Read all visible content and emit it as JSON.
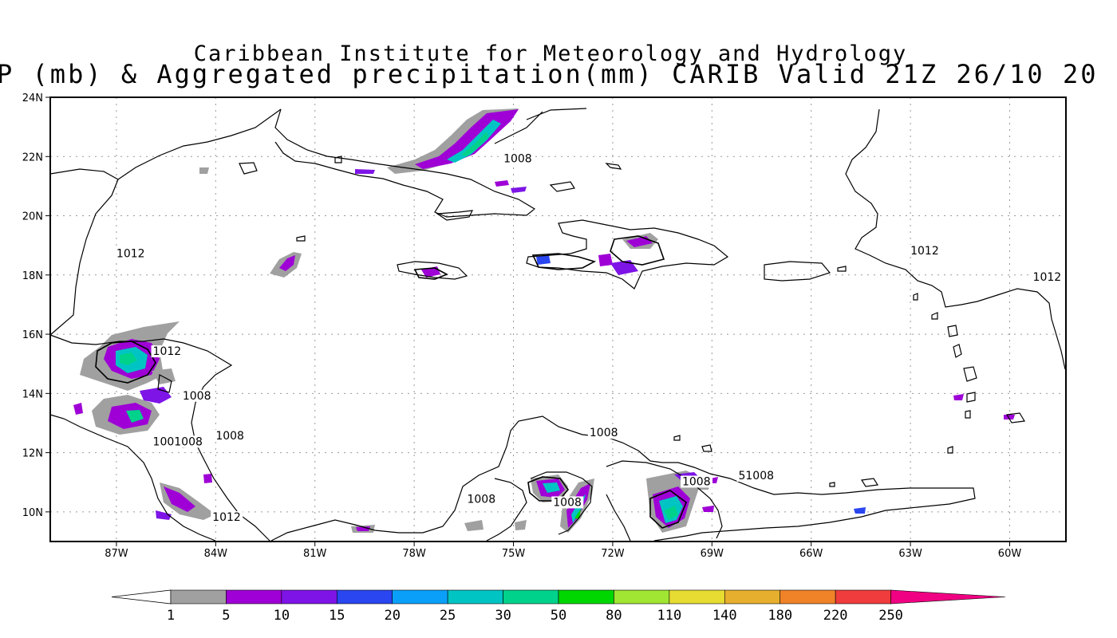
{
  "title": {
    "line1": "Caribbean Institute for Meteorology and Hydrology",
    "line2": "P (mb) & Aggregated precipitation(mm) CARIB Valid 21Z 26/10 20"
  },
  "map": {
    "lat_range": [
      9,
      24
    ],
    "lon_range": [
      -89,
      -58.3
    ],
    "lat_ticks": [
      {
        "label": "24N",
        "lat": 24
      },
      {
        "label": "22N",
        "lat": 22
      },
      {
        "label": "20N",
        "lat": 20
      },
      {
        "label": "18N",
        "lat": 18
      },
      {
        "label": "16N",
        "lat": 16
      },
      {
        "label": "14N",
        "lat": 14
      },
      {
        "label": "12N",
        "lat": 12
      },
      {
        "label": "10N",
        "lat": 10
      }
    ],
    "lon_ticks": [
      {
        "label": "87W",
        "lon": -87
      },
      {
        "label": "84W",
        "lon": -84
      },
      {
        "label": "81W",
        "lon": -81
      },
      {
        "label": "78W",
        "lon": -78
      },
      {
        "label": "75W",
        "lon": -75
      },
      {
        "label": "72W",
        "lon": -72
      },
      {
        "label": "69W",
        "lon": -69
      },
      {
        "label": "66W",
        "lon": -66
      },
      {
        "label": "63W",
        "lon": -63
      },
      {
        "label": "60W",
        "lon": -60
      }
    ],
    "pressure_labels": [
      {
        "text": "1012",
        "lon": -87.0,
        "lat": 18.6
      },
      {
        "text": "1012",
        "lon": -85.9,
        "lat": 15.3
      },
      {
        "text": "1008",
        "lon": -85.0,
        "lat": 13.8
      },
      {
        "text": "1001008",
        "lon": -85.9,
        "lat": 12.25
      },
      {
        "text": "1008",
        "lon": -84.0,
        "lat": 12.45
      },
      {
        "text": "1012",
        "lon": -84.1,
        "lat": 9.7
      },
      {
        "text": "1008",
        "lon": -75.3,
        "lat": 21.8
      },
      {
        "text": "1008",
        "lon": -72.7,
        "lat": 12.55
      },
      {
        "text": "1008",
        "lon": -76.4,
        "lat": 10.3
      },
      {
        "text": "1008",
        "lon": -73.8,
        "lat": 10.2
      },
      {
        "text": "1008",
        "lon": -69.9,
        "lat": 10.9
      },
      {
        "text": "51008",
        "lon": -68.2,
        "lat": 11.1
      },
      {
        "text": "1012",
        "lon": -63.0,
        "lat": 18.7
      },
      {
        "text": "1012",
        "lon": -59.3,
        "lat": 17.8
      }
    ]
  },
  "colorbar": {
    "labels": [
      "1",
      "5",
      "10",
      "15",
      "20",
      "25",
      "30",
      "50",
      "80",
      "110",
      "140",
      "180",
      "220",
      "250"
    ],
    "colors": [
      "#a0a0a0",
      "#9e00d6",
      "#7e14e6",
      "#2a46f0",
      "#0aa0fa",
      "#00c4c4",
      "#00d28c",
      "#00d600",
      "#a0e632",
      "#e6dc32",
      "#e6af2d",
      "#f08228",
      "#f03c3c",
      "#f00082"
    ]
  }
}
